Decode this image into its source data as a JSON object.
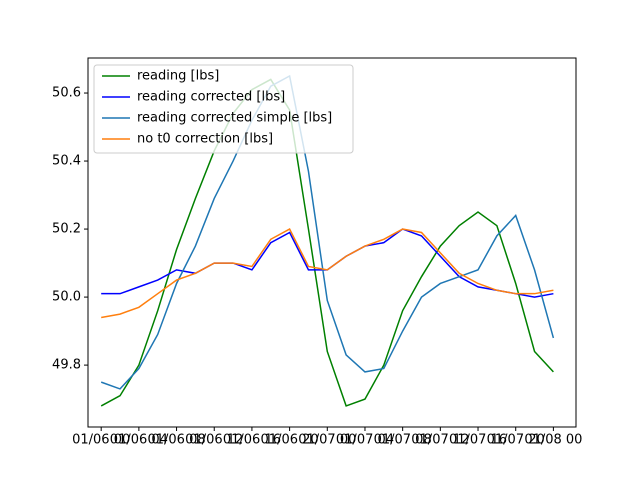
{
  "chart_data": {
    "type": "line",
    "x": [
      0,
      2,
      4,
      6,
      8,
      10,
      12,
      14,
      16,
      18,
      20,
      22,
      24,
      26,
      28,
      30,
      32,
      34,
      36,
      38,
      40,
      42,
      44,
      46,
      48
    ],
    "series": [
      {
        "name": "reading [lbs]",
        "color": "#008000",
        "values": [
          49.68,
          49.71,
          49.8,
          49.96,
          50.14,
          50.29,
          50.43,
          50.54,
          50.61,
          50.64,
          50.55,
          50.2,
          49.84,
          49.68,
          49.7,
          49.8,
          49.96,
          50.06,
          50.15,
          50.21,
          50.25,
          50.21,
          50.04,
          49.84,
          49.78
        ]
      },
      {
        "name": "reading corrected [lbs]",
        "color": "#0000ff",
        "values": [
          50.01,
          50.01,
          50.03,
          50.05,
          50.08,
          50.07,
          50.1,
          50.1,
          50.08,
          50.16,
          50.19,
          50.08,
          50.08,
          50.12,
          50.15,
          50.16,
          50.2,
          50.18,
          50.12,
          50.06,
          50.03,
          50.02,
          50.01,
          50.0,
          50.01
        ]
      },
      {
        "name": "reading corrected simple [lbs]",
        "color": "#1f77b4",
        "values": [
          49.75,
          49.73,
          49.79,
          49.89,
          50.04,
          50.15,
          50.29,
          50.4,
          50.52,
          50.62,
          50.65,
          50.37,
          49.99,
          49.83,
          49.78,
          49.79,
          49.9,
          50.0,
          50.04,
          50.06,
          50.08,
          50.18,
          50.24,
          50.08,
          49.88
        ]
      },
      {
        "name": "no t0 correction [lbs]",
        "color": "#ff7f0e",
        "values": [
          49.94,
          49.95,
          49.97,
          50.01,
          50.05,
          50.07,
          50.1,
          50.1,
          50.09,
          50.17,
          50.2,
          50.09,
          50.08,
          50.12,
          50.15,
          50.17,
          50.2,
          50.19,
          50.13,
          50.07,
          50.04,
          50.02,
          50.01,
          50.01,
          50.02
        ]
      }
    ],
    "xlim": [
      -1.4,
      50.4
    ],
    "ylim": [
      49.618,
      50.703
    ],
    "xticks": [
      {
        "value": 0,
        "label": "01/06 00"
      },
      {
        "value": 4,
        "label": "01/06 04"
      },
      {
        "value": 8,
        "label": "01/06 08"
      },
      {
        "value": 12,
        "label": "01/06 12"
      },
      {
        "value": 16,
        "label": "01/06 16"
      },
      {
        "value": 20,
        "label": "01/06 20"
      },
      {
        "value": 24,
        "label": "01/07 00"
      },
      {
        "value": 28,
        "label": "01/07 04"
      },
      {
        "value": 32,
        "label": "01/07 08"
      },
      {
        "value": 36,
        "label": "01/07 12"
      },
      {
        "value": 40,
        "label": "01/07 16"
      },
      {
        "value": 44,
        "label": "01/07 20"
      },
      {
        "value": 48,
        "label": "01/08 00"
      }
    ],
    "yticks": [
      49.8,
      {
        "value": 50,
        "label": "50.0"
      },
      50.2,
      50.4,
      50.6
    ],
    "legend": "upper left"
  }
}
